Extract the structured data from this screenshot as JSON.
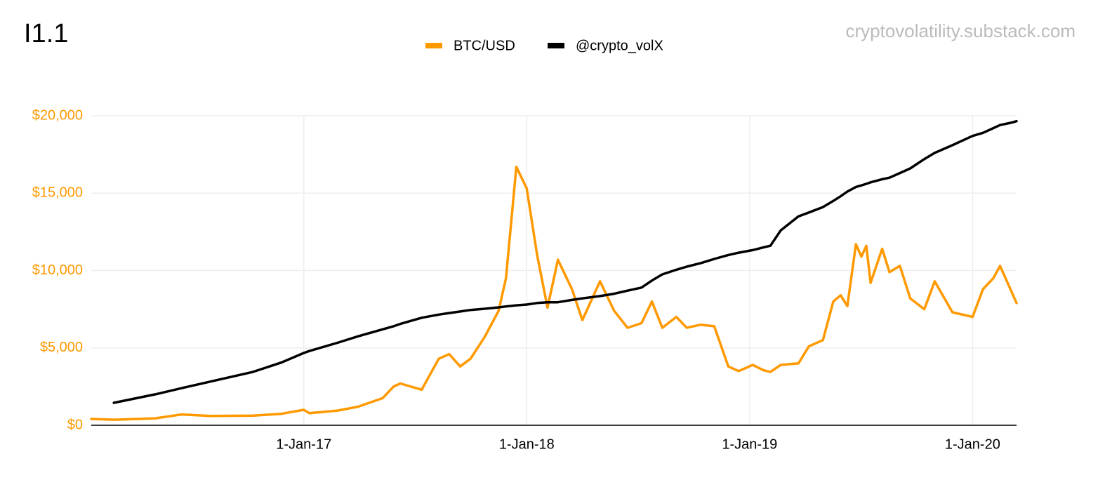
{
  "title": "I1.1",
  "source": "cryptovolatility.substack.com",
  "chart_data": {
    "type": "line",
    "x": [
      "2016-01-19",
      "2016-02-25",
      "2016-05-03",
      "2016-06-15",
      "2016-08-02",
      "2016-10-10",
      "2016-11-25",
      "2017-01-01",
      "2017-01-10",
      "2017-02-25",
      "2017-03-31",
      "2017-05-10",
      "2017-05-28",
      "2017-06-08",
      "2017-07-13",
      "2017-08-10",
      "2017-08-27",
      "2017-09-14",
      "2017-10-01",
      "2017-10-24",
      "2017-11-16",
      "2017-11-28",
      "2017-12-15",
      "2018-01-01",
      "2018-01-18",
      "2018-02-04",
      "2018-02-21",
      "2018-03-16",
      "2018-04-02",
      "2018-05-01",
      "2018-05-24",
      "2018-06-15",
      "2018-07-08",
      "2018-07-25",
      "2018-08-11",
      "2018-09-03",
      "2018-09-20",
      "2018-10-13",
      "2018-11-04",
      "2018-11-27",
      "2018-12-14",
      "2019-01-06",
      "2019-01-24",
      "2019-02-04",
      "2019-02-21",
      "2019-03-22",
      "2019-04-08",
      "2019-05-01",
      "2019-05-18",
      "2019-05-30",
      "2019-06-10",
      "2019-06-24",
      "2019-07-03",
      "2019-07-11",
      "2019-07-18",
      "2019-08-06",
      "2019-08-18",
      "2019-09-04",
      "2019-09-21",
      "2019-10-14",
      "2019-10-31",
      "2019-11-29",
      "2020-01-01",
      "2020-01-18",
      "2020-02-04",
      "2020-02-15",
      "2020-03-04",
      "2020-03-13"
    ],
    "series": [
      {
        "name": "BTC/USD",
        "color": "#ff9900",
        "values": [
          410,
          360,
          450,
          700,
          600,
          620,
          740,
          1000,
          780,
          950,
          1200,
          1750,
          2500,
          2700,
          2300,
          4300,
          4600,
          3800,
          4300,
          5700,
          7400,
          9500,
          16700,
          15300,
          11000,
          7600,
          10700,
          8800,
          6800,
          9300,
          7400,
          6300,
          6600,
          8000,
          6300,
          7000,
          6300,
          6500,
          6400,
          3800,
          3500,
          3900,
          3550,
          3450,
          3900,
          4000,
          5100,
          5500,
          8000,
          8400,
          7700,
          11700,
          10900,
          11600,
          9200,
          11400,
          9900,
          10300,
          8200,
          7500,
          9300,
          7300,
          7000,
          8800,
          9500,
          10300,
          8700,
          7900
        ]
      },
      {
        "name": "@crypto_volX",
        "color": "#000000",
        "values": [
          null,
          1450,
          2000,
          2400,
          2830,
          3450,
          4050,
          4670,
          4800,
          5330,
          5750,
          6200,
          6400,
          6550,
          6950,
          7150,
          7250,
          7350,
          7450,
          7530,
          7620,
          7680,
          7750,
          7800,
          7900,
          7950,
          7950,
          8100,
          8200,
          8350,
          8500,
          8700,
          8900,
          9350,
          9750,
          10050,
          10250,
          10480,
          10750,
          11000,
          11150,
          11320,
          11500,
          11600,
          12600,
          13500,
          13750,
          14100,
          14500,
          14800,
          15100,
          15400,
          15500,
          15600,
          15700,
          15900,
          16000,
          16300,
          16600,
          17200,
          17600,
          18100,
          18700,
          18900,
          19200,
          19400,
          19550,
          19650
        ]
      }
    ],
    "xlim": [
      "2016-01-19",
      "2020-03-13"
    ],
    "xticks": [
      {
        "value": "2017-01-01",
        "label": "1-Jan-17"
      },
      {
        "value": "2018-01-01",
        "label": "1-Jan-18"
      },
      {
        "value": "2019-01-01",
        "label": "1-Jan-19"
      },
      {
        "value": "2020-01-01",
        "label": "1-Jan-20"
      }
    ],
    "ylim": [
      0,
      20000
    ],
    "yticks": [
      {
        "value": 0,
        "label": "$0"
      },
      {
        "value": 5000,
        "label": "$5,000"
      },
      {
        "value": 10000,
        "label": "$10,000"
      },
      {
        "value": 15000,
        "label": "$15,000"
      },
      {
        "value": 20000,
        "label": "$20,000"
      }
    ],
    "grid": true,
    "legend": "top",
    "tick_color": "#ff9900"
  }
}
